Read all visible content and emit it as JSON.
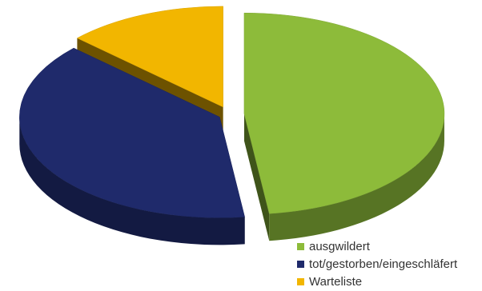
{
  "chart_data": {
    "type": "pie",
    "style": "3d-exploded",
    "title": "",
    "slices": [
      {
        "label": "ausgwildert",
        "value": 48,
        "color": "#8dbb3a"
      },
      {
        "label": "tot/gestorben/eingeschläfert",
        "value": 39,
        "color": "#1f2a6b"
      },
      {
        "label": "Warteliste",
        "value": 13,
        "color": "#f2b600"
      }
    ],
    "legend_position": "bottom-right"
  }
}
